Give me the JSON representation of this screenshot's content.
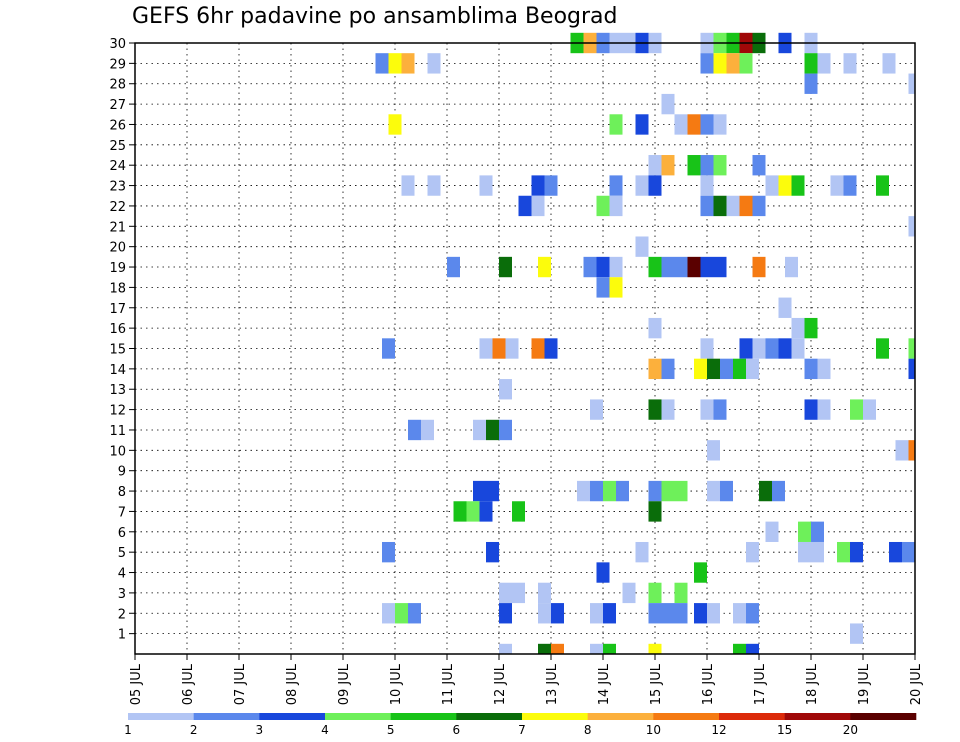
{
  "chart_data": {
    "type": "heatmap",
    "title": "GEFS 6hr padavine po ansamblima Beograd",
    "x_ticks": [
      "05 JUL",
      "06 JUL",
      "07 JUL",
      "08 JUL",
      "09 JUL",
      "10 JUL",
      "11 JUL",
      "12 JUL",
      "13 JUL",
      "14 JUL",
      "15 JUL",
      "16 JUL",
      "17 JUL",
      "18 JUL",
      "19 JUL",
      "20 JUL"
    ],
    "xlim": [
      "05 JUL",
      "20 JUL"
    ],
    "y_ticks": [
      "1",
      "2",
      "3",
      "4",
      "5",
      "6",
      "7",
      "8",
      "9",
      "10",
      "11",
      "12",
      "13",
      "14",
      "15",
      "16",
      "17",
      "18",
      "19",
      "20",
      "21",
      "22",
      "23",
      "24",
      "25",
      "26",
      "27",
      "28",
      "29",
      "30"
    ],
    "ylim": [
      0,
      30
    ],
    "grid": true,
    "colorbar": {
      "labels": [
        "1",
        "2",
        "3",
        "4",
        "5",
        "6",
        "7",
        "8",
        "10",
        "12",
        "15",
        "20"
      ],
      "colors": [
        "#b2c5f4",
        "#5b88ec",
        "#1847dc",
        "#6ef05a",
        "#18c318",
        "#0a6d0a",
        "#fcfc0c",
        "#fcb03c",
        "#f57a12",
        "#dc2a0a",
        "#a00808",
        "#5a0000"
      ]
    },
    "cells": [
      {
        "member": 30,
        "time": "13.5",
        "level": 5
      },
      {
        "member": 30,
        "time": "13.75",
        "level": 8
      },
      {
        "member": 30,
        "time": "14.0",
        "level": 2
      },
      {
        "member": 30,
        "time": "14.25",
        "level": 1
      },
      {
        "member": 30,
        "time": "14.5",
        "level": 1
      },
      {
        "member": 30,
        "time": "14.75",
        "level": 3
      },
      {
        "member": 30,
        "time": "15.0",
        "level": 1
      },
      {
        "member": 30,
        "time": "16.0",
        "level": 1
      },
      {
        "member": 30,
        "time": "16.25",
        "level": 4
      },
      {
        "member": 30,
        "time": "16.5",
        "level": 5
      },
      {
        "member": 30,
        "time": "16.75",
        "level": 15
      },
      {
        "member": 30,
        "time": "17.0",
        "level": 6
      },
      {
        "member": 30,
        "time": "17.5",
        "level": 3
      },
      {
        "member": 30,
        "time": "18.0",
        "level": 1
      },
      {
        "member": 29,
        "time": "9.75",
        "level": 2
      },
      {
        "member": 29,
        "time": "10.0",
        "level": 7
      },
      {
        "member": 29,
        "time": "10.25",
        "level": 8
      },
      {
        "member": 29,
        "time": "10.75",
        "level": 1
      },
      {
        "member": 29,
        "time": "16.0",
        "level": 2
      },
      {
        "member": 29,
        "time": "16.25",
        "level": 7
      },
      {
        "member": 29,
        "time": "16.5",
        "level": 8
      },
      {
        "member": 29,
        "time": "16.75",
        "level": 4
      },
      {
        "member": 29,
        "time": "18.0",
        "level": 5
      },
      {
        "member": 29,
        "time": "18.25",
        "level": 1
      },
      {
        "member": 29,
        "time": "18.75",
        "level": 1
      },
      {
        "member": 29,
        "time": "19.5",
        "level": 1
      },
      {
        "member": 28,
        "time": "18.0",
        "level": 2
      },
      {
        "member": 28,
        "time": "20.0",
        "level": 1
      },
      {
        "member": 27,
        "time": "15.25",
        "level": 1
      },
      {
        "member": 26,
        "time": "10.0",
        "level": 7
      },
      {
        "member": 26,
        "time": "14.25",
        "level": 4
      },
      {
        "member": 26,
        "time": "14.75",
        "level": 3
      },
      {
        "member": 26,
        "time": "15.5",
        "level": 1
      },
      {
        "member": 26,
        "time": "15.75",
        "level": 10
      },
      {
        "member": 26,
        "time": "16.0",
        "level": 2
      },
      {
        "member": 26,
        "time": "16.25",
        "level": 1
      },
      {
        "member": 24,
        "time": "15.0",
        "level": 1
      },
      {
        "member": 24,
        "time": "15.25",
        "level": 8
      },
      {
        "member": 24,
        "time": "15.75",
        "level": 5
      },
      {
        "member": 24,
        "time": "16.0",
        "level": 2
      },
      {
        "member": 24,
        "time": "16.25",
        "level": 4
      },
      {
        "member": 24,
        "time": "17.0",
        "level": 2
      },
      {
        "member": 23,
        "time": "10.25",
        "level": 1
      },
      {
        "member": 23,
        "time": "10.75",
        "level": 1
      },
      {
        "member": 23,
        "time": "11.75",
        "level": 1
      },
      {
        "member": 23,
        "time": "12.75",
        "level": 3
      },
      {
        "member": 23,
        "time": "13.0",
        "level": 2
      },
      {
        "member": 23,
        "time": "14.25",
        "level": 2
      },
      {
        "member": 23,
        "time": "14.75",
        "level": 1
      },
      {
        "member": 23,
        "time": "15.0",
        "level": 3
      },
      {
        "member": 23,
        "time": "16.0",
        "level": 1
      },
      {
        "member": 23,
        "time": "17.25",
        "level": 1
      },
      {
        "member": 23,
        "time": "17.5",
        "level": 7
      },
      {
        "member": 23,
        "time": "17.75",
        "level": 5
      },
      {
        "member": 23,
        "time": "18.5",
        "level": 1
      },
      {
        "member": 23,
        "time": "18.75",
        "level": 2
      },
      {
        "member": 23,
        "time": "19.375",
        "level": 5
      },
      {
        "member": 22,
        "time": "12.5",
        "level": 3
      },
      {
        "member": 22,
        "time": "12.75",
        "level": 1
      },
      {
        "member": 22,
        "time": "14.0",
        "level": 4
      },
      {
        "member": 22,
        "time": "14.25",
        "level": 1
      },
      {
        "member": 22,
        "time": "16.0",
        "level": 2
      },
      {
        "member": 22,
        "time": "16.25",
        "level": 6
      },
      {
        "member": 22,
        "time": "16.5",
        "level": 1
      },
      {
        "member": 22,
        "time": "16.75",
        "level": 10
      },
      {
        "member": 22,
        "time": "17.0",
        "level": 2
      },
      {
        "member": 21,
        "time": "20.0",
        "level": 1
      },
      {
        "member": 20,
        "time": "14.75",
        "level": 1
      },
      {
        "member": 19,
        "time": "11.125",
        "level": 2
      },
      {
        "member": 19,
        "time": "12.125",
        "level": 6
      },
      {
        "member": 19,
        "time": "12.875",
        "level": 7
      },
      {
        "member": 19,
        "time": "13.75",
        "level": 2
      },
      {
        "member": 19,
        "time": "14.0",
        "level": 3
      },
      {
        "member": 19,
        "time": "14.25",
        "level": 1
      },
      {
        "member": 19,
        "time": "15.0",
        "level": 5
      },
      {
        "member": 19,
        "time": "15.25",
        "level": 2
      },
      {
        "member": 19,
        "time": "15.5",
        "level": 2
      },
      {
        "member": 19,
        "time": "15.75",
        "level": 20
      },
      {
        "member": 19,
        "time": "16.0",
        "level": 3
      },
      {
        "member": 19,
        "time": "16.25",
        "level": 3
      },
      {
        "member": 19,
        "time": "17.0",
        "level": 10
      },
      {
        "member": 19,
        "time": "17.625",
        "level": 1
      },
      {
        "member": 18,
        "time": "14.0",
        "level": 2
      },
      {
        "member": 18,
        "time": "14.25",
        "level": 7
      },
      {
        "member": 17,
        "time": "17.5",
        "level": 1
      },
      {
        "member": 16,
        "time": "15.0",
        "level": 1
      },
      {
        "member": 16,
        "time": "17.75",
        "level": 1
      },
      {
        "member": 16,
        "time": "18.0",
        "level": 5
      },
      {
        "member": 15,
        "time": "9.875",
        "level": 2
      },
      {
        "member": 15,
        "time": "11.75",
        "level": 1
      },
      {
        "member": 15,
        "time": "12.0",
        "level": 10
      },
      {
        "member": 15,
        "time": "12.25",
        "level": 1
      },
      {
        "member": 15,
        "time": "12.75",
        "level": 10
      },
      {
        "member": 15,
        "time": "13.0",
        "level": 3
      },
      {
        "member": 15,
        "time": "16.0",
        "level": 1
      },
      {
        "member": 15,
        "time": "16.75",
        "level": 3
      },
      {
        "member": 15,
        "time": "17.0",
        "level": 1
      },
      {
        "member": 15,
        "time": "17.25",
        "level": 2
      },
      {
        "member": 15,
        "time": "17.5",
        "level": 3
      },
      {
        "member": 15,
        "time": "17.75",
        "level": 1
      },
      {
        "member": 15,
        "time": "19.375",
        "level": 5
      },
      {
        "member": 15,
        "time": "20.0",
        "level": 4
      },
      {
        "member": 14,
        "time": "15.0",
        "level": 8
      },
      {
        "member": 14,
        "time": "15.25",
        "level": 2
      },
      {
        "member": 14,
        "time": "15.875",
        "level": 7
      },
      {
        "member": 14,
        "time": "16.125",
        "level": 6
      },
      {
        "member": 14,
        "time": "16.375",
        "level": 2
      },
      {
        "member": 14,
        "time": "16.625",
        "level": 5
      },
      {
        "member": 14,
        "time": "16.875",
        "level": 1
      },
      {
        "member": 14,
        "time": "18.0",
        "level": 2
      },
      {
        "member": 14,
        "time": "18.25",
        "level": 1
      },
      {
        "member": 14,
        "time": "20.0",
        "level": 3
      },
      {
        "member": 13,
        "time": "12.125",
        "level": 1
      },
      {
        "member": 12,
        "time": "13.875",
        "level": 1
      },
      {
        "member": 12,
        "time": "15.0",
        "level": 6
      },
      {
        "member": 12,
        "time": "15.25",
        "level": 1
      },
      {
        "member": 12,
        "time": "16.0",
        "level": 1
      },
      {
        "member": 12,
        "time": "16.25",
        "level": 2
      },
      {
        "member": 12,
        "time": "18.0",
        "level": 3
      },
      {
        "member": 12,
        "time": "18.25",
        "level": 1
      },
      {
        "member": 12,
        "time": "18.875",
        "level": 4
      },
      {
        "member": 12,
        "time": "19.125",
        "level": 1
      },
      {
        "member": 11,
        "time": "10.375",
        "level": 2
      },
      {
        "member": 11,
        "time": "10.625",
        "level": 1
      },
      {
        "member": 11,
        "time": "11.625",
        "level": 1
      },
      {
        "member": 11,
        "time": "11.875",
        "level": 6
      },
      {
        "member": 11,
        "time": "12.125",
        "level": 2
      },
      {
        "member": 10,
        "time": "16.125",
        "level": 1
      },
      {
        "member": 10,
        "time": "19.75",
        "level": 1
      },
      {
        "member": 10,
        "time": "20.0",
        "level": 10
      },
      {
        "member": 8,
        "time": "11.625",
        "level": 3
      },
      {
        "member": 8,
        "time": "11.875",
        "level": 3
      },
      {
        "member": 8,
        "time": "13.625",
        "level": 1
      },
      {
        "member": 8,
        "time": "13.875",
        "level": 2
      },
      {
        "member": 8,
        "time": "14.125",
        "level": 4
      },
      {
        "member": 8,
        "time": "14.375",
        "level": 2
      },
      {
        "member": 8,
        "time": "15.0",
        "level": 2
      },
      {
        "member": 8,
        "time": "15.25",
        "level": 4
      },
      {
        "member": 8,
        "time": "15.5",
        "level": 4
      },
      {
        "member": 8,
        "time": "16.125",
        "level": 1
      },
      {
        "member": 8,
        "time": "16.375",
        "level": 2
      },
      {
        "member": 8,
        "time": "17.125",
        "level": 6
      },
      {
        "member": 8,
        "time": "17.375",
        "level": 2
      },
      {
        "member": 7,
        "time": "11.25",
        "level": 5
      },
      {
        "member": 7,
        "time": "11.5",
        "level": 4
      },
      {
        "member": 7,
        "time": "11.75",
        "level": 3
      },
      {
        "member": 7,
        "time": "12.375",
        "level": 5
      },
      {
        "member": 7,
        "time": "15.0",
        "level": 6
      },
      {
        "member": 6,
        "time": "17.25",
        "level": 1
      },
      {
        "member": 6,
        "time": "17.875",
        "level": 4
      },
      {
        "member": 6,
        "time": "18.125",
        "level": 2
      },
      {
        "member": 5,
        "time": "9.875",
        "level": 2
      },
      {
        "member": 5,
        "time": "11.875",
        "level": 3
      },
      {
        "member": 5,
        "time": "14.75",
        "level": 1
      },
      {
        "member": 5,
        "time": "16.875",
        "level": 1
      },
      {
        "member": 5,
        "time": "17.875",
        "level": 1
      },
      {
        "member": 5,
        "time": "18.125",
        "level": 1
      },
      {
        "member": 5,
        "time": "18.625",
        "level": 4
      },
      {
        "member": 5,
        "time": "18.875",
        "level": 3
      },
      {
        "member": 5,
        "time": "19.625",
        "level": 3
      },
      {
        "member": 5,
        "time": "19.875",
        "level": 2
      },
      {
        "member": 4,
        "time": "14.0",
        "level": 3
      },
      {
        "member": 4,
        "time": "15.875",
        "level": 5
      },
      {
        "member": 3,
        "time": "12.125",
        "level": 1
      },
      {
        "member": 3,
        "time": "12.375",
        "level": 1
      },
      {
        "member": 3,
        "time": "12.875",
        "level": 1
      },
      {
        "member": 3,
        "time": "14.5",
        "level": 1
      },
      {
        "member": 3,
        "time": "15.0",
        "level": 4
      },
      {
        "member": 3,
        "time": "15.5",
        "level": 4
      },
      {
        "member": 2,
        "time": "9.875",
        "level": 1
      },
      {
        "member": 2,
        "time": "10.125",
        "level": 4
      },
      {
        "member": 2,
        "time": "10.375",
        "level": 2
      },
      {
        "member": 2,
        "time": "12.125",
        "level": 3
      },
      {
        "member": 2,
        "time": "12.875",
        "level": 1
      },
      {
        "member": 2,
        "time": "13.125",
        "level": 3
      },
      {
        "member": 2,
        "time": "13.875",
        "level": 1
      },
      {
        "member": 2,
        "time": "14.125",
        "level": 3
      },
      {
        "member": 2,
        "time": "15.0",
        "level": 2
      },
      {
        "member": 2,
        "time": "15.25",
        "level": 2
      },
      {
        "member": 2,
        "time": "15.5",
        "level": 2
      },
      {
        "member": 2,
        "time": "15.875",
        "level": 3
      },
      {
        "member": 2,
        "time": "16.125",
        "level": 1
      },
      {
        "member": 2,
        "time": "16.625",
        "level": 1
      },
      {
        "member": 2,
        "time": "16.875",
        "level": 2
      },
      {
        "member": 1,
        "time": "18.875",
        "level": 1
      },
      {
        "member": 0,
        "time": "12.125",
        "level": 1
      },
      {
        "member": 0,
        "time": "12.875",
        "level": 6
      },
      {
        "member": 0,
        "time": "13.125",
        "level": 10
      },
      {
        "member": 0,
        "time": "13.875",
        "level": 1
      },
      {
        "member": 0,
        "time": "14.125",
        "level": 5
      },
      {
        "member": 0,
        "time": "15.0",
        "level": 7
      },
      {
        "member": 0,
        "time": "16.625",
        "level": 5
      },
      {
        "member": 0,
        "time": "16.875",
        "level": 3
      }
    ]
  }
}
